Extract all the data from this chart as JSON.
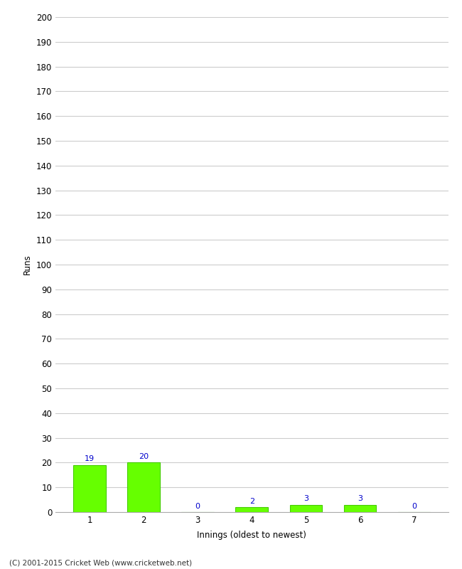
{
  "categories": [
    "1",
    "2",
    "3",
    "4",
    "5",
    "6",
    "7"
  ],
  "values": [
    19,
    20,
    0,
    2,
    3,
    3,
    0
  ],
  "bar_color": "#66ff00",
  "bar_edge_color": "#44cc00",
  "ylabel": "Runs",
  "xlabel": "Innings (oldest to newest)",
  "ylim": [
    0,
    200
  ],
  "yticks": [
    0,
    10,
    20,
    30,
    40,
    50,
    60,
    70,
    80,
    90,
    100,
    110,
    120,
    130,
    140,
    150,
    160,
    170,
    180,
    190,
    200
  ],
  "annotation_color": "#0000cc",
  "annotation_fontsize": 8,
  "footer": "(C) 2001-2015 Cricket Web (www.cricketweb.net)",
  "background_color": "#ffffff",
  "grid_color": "#cccccc"
}
